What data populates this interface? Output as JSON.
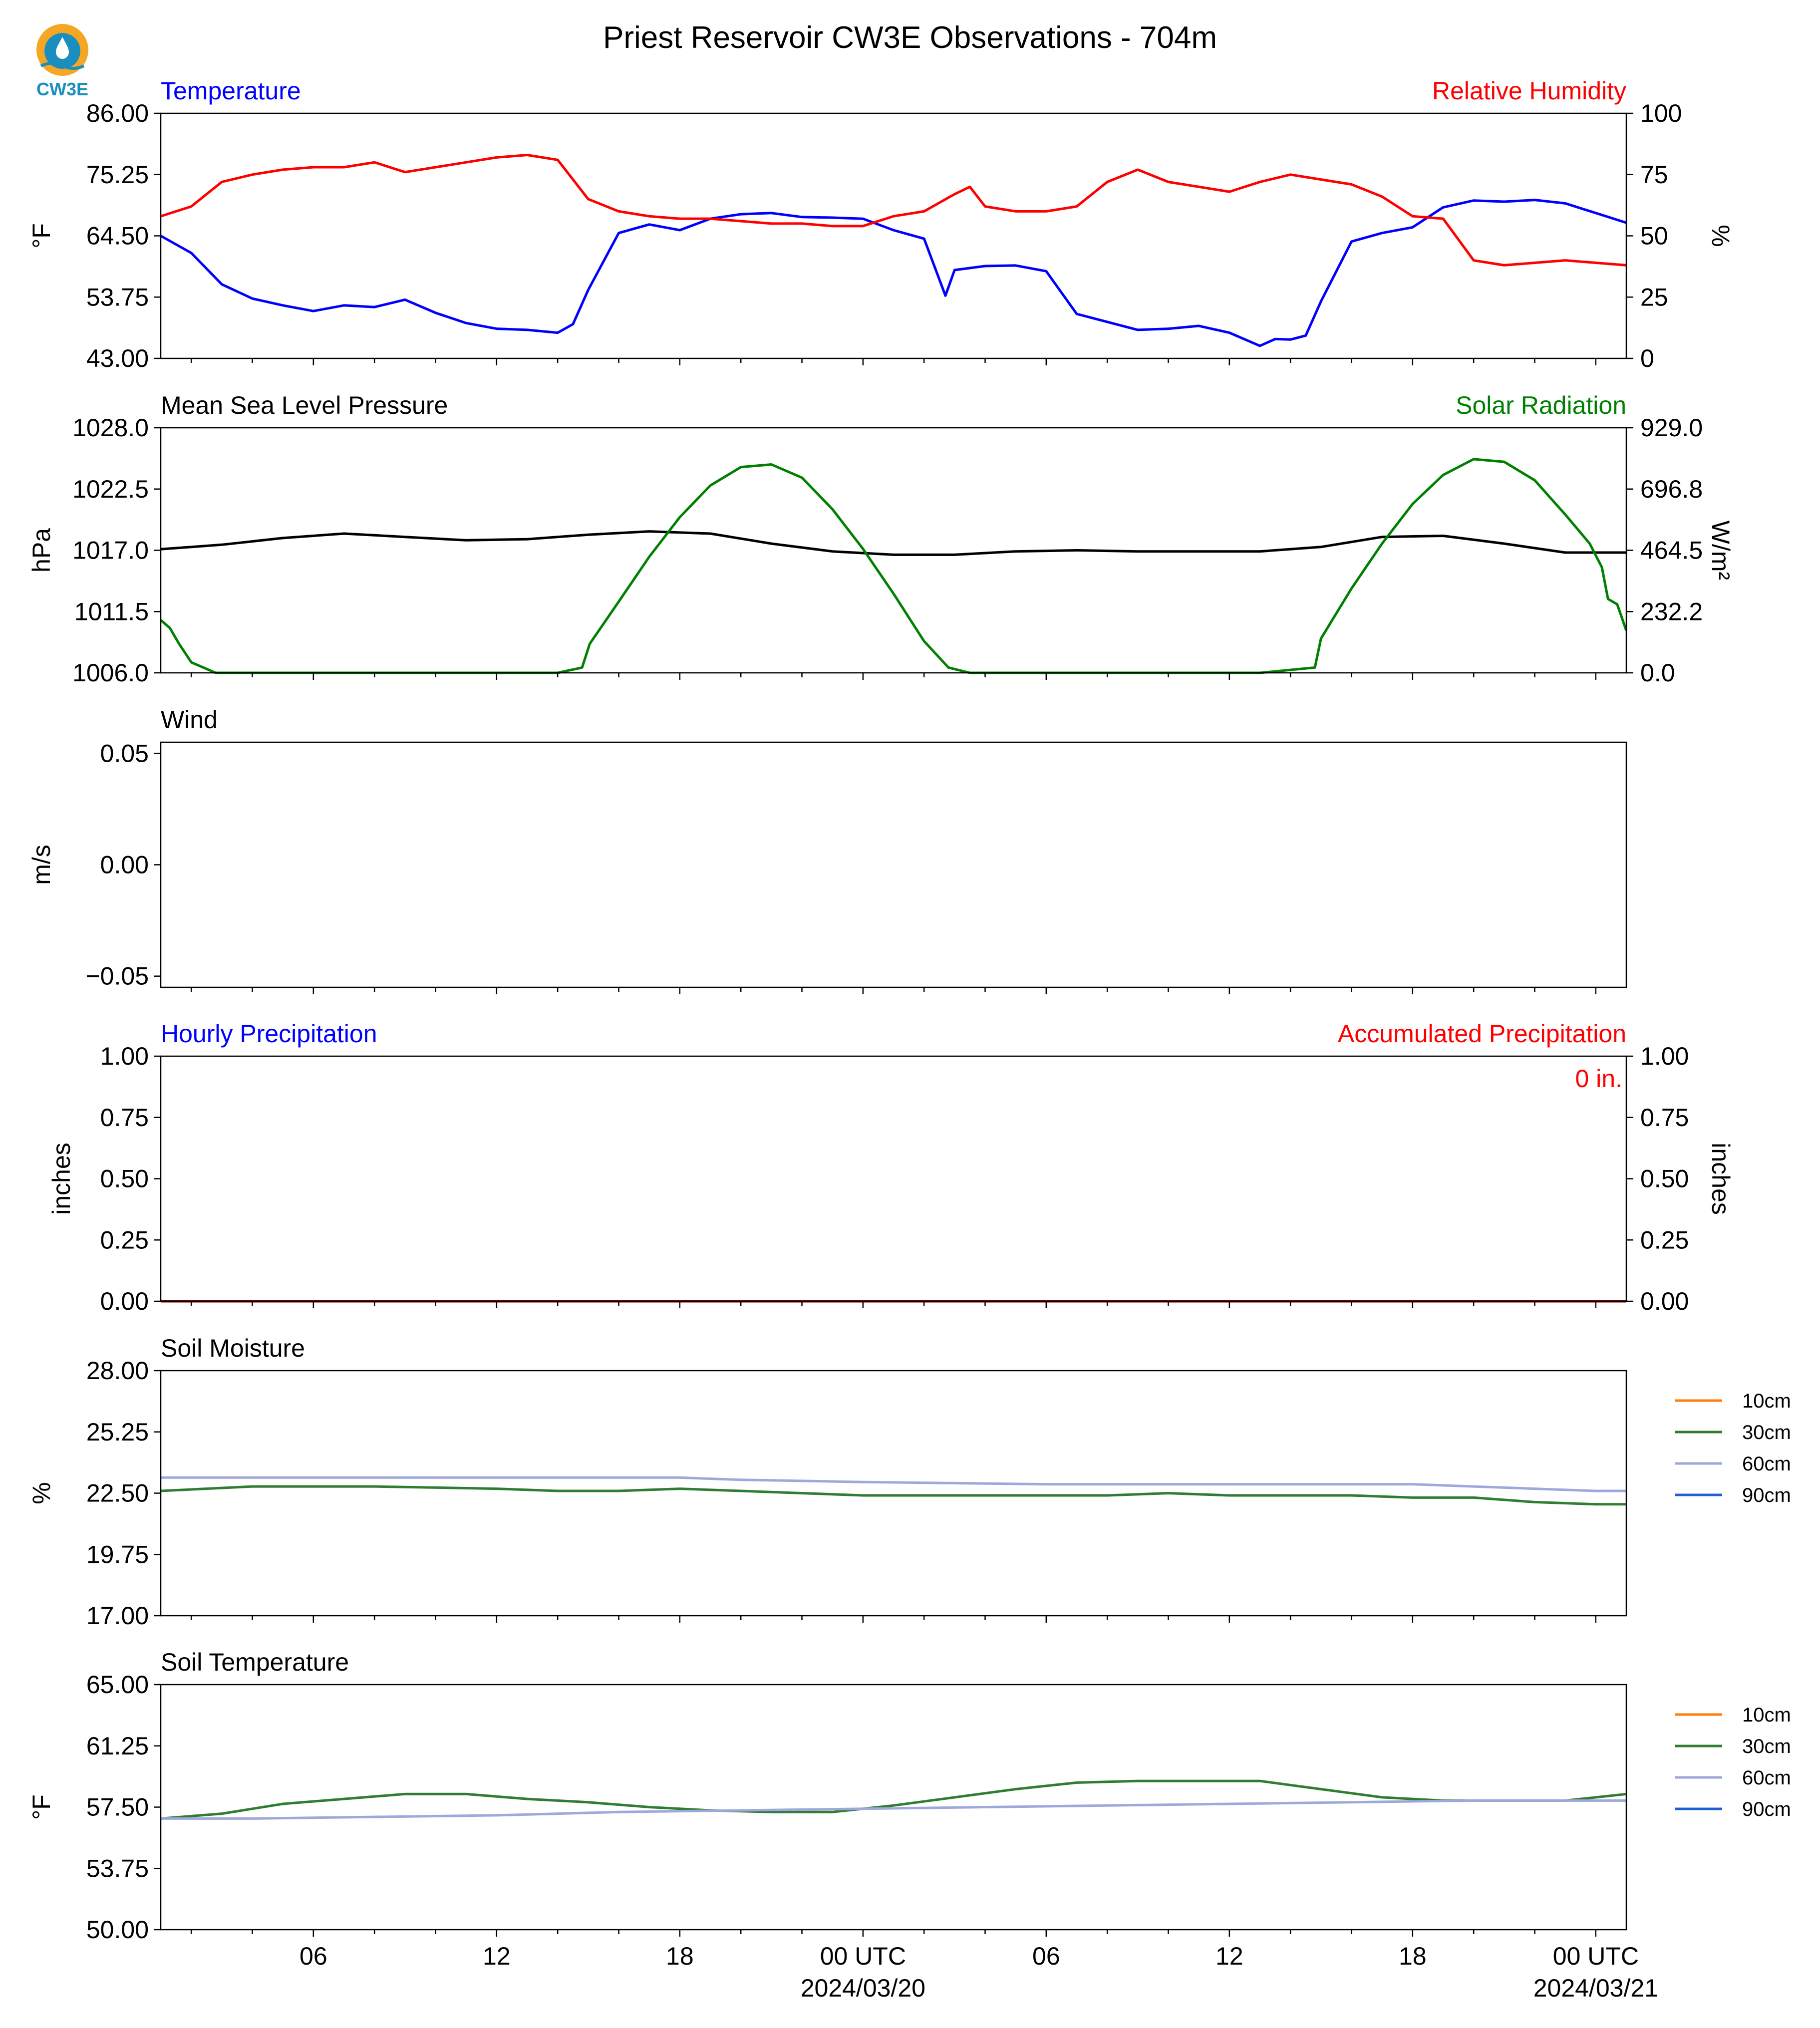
{
  "title": "Priest Reservoir CW3E Observations - 704m",
  "logo": {
    "text": "CW3E",
    "colors": {
      "sun": "#f5a623",
      "drop": "#1a8fbf"
    }
  },
  "colors": {
    "temperature": "#0000ff",
    "humidity": "#ff0000",
    "pressure": "#000000",
    "solar": "#008000",
    "soil_10cm": "#ff7f0e",
    "soil_30cm": "#2e7d32",
    "soil_60cm": "#9fa8da",
    "soil_90cm": "#1f5fd6",
    "hourly_precip": "#0000ff",
    "accum_precip": "#8b0000"
  },
  "x_axis": {
    "ticks": [
      {
        "hour": 6,
        "label": "06"
      },
      {
        "hour": 12,
        "label": "12"
      },
      {
        "hour": 18,
        "label": "18"
      },
      {
        "hour": 24,
        "label": "00 UTC",
        "sublabel": "2024/03/20"
      },
      {
        "hour": 30,
        "label": "06"
      },
      {
        "hour": 36,
        "label": "12"
      },
      {
        "hour": 42,
        "label": "18"
      },
      {
        "hour": 48,
        "label": "00 UTC",
        "sublabel": "2024/03/21"
      }
    ],
    "range_hours": [
      1,
      49
    ]
  },
  "chart_data": [
    {
      "type": "line",
      "left_title": "Temperature",
      "right_title": "Relative Humidity",
      "ylabel": "°F",
      "ylabel_right": "%",
      "yticks": [
        "86.00",
        "75.25",
        "64.50",
        "53.75",
        "43.00"
      ],
      "ylim": [
        43,
        86
      ],
      "yticks_right": [
        "100",
        "75",
        "50",
        "25",
        "0"
      ],
      "ylim_right": [
        0,
        100
      ],
      "series": [
        {
          "name": "Temperature",
          "axis": "left",
          "color": "#0000ff",
          "x": [
            1,
            2,
            3,
            4,
            5,
            6,
            7,
            8,
            9,
            10,
            11,
            12,
            13,
            14,
            14.5,
            15,
            16,
            17,
            18,
            19,
            20,
            21,
            22,
            23,
            24,
            25,
            26,
            26.7,
            27,
            28,
            29,
            30,
            31,
            32,
            33,
            34,
            35,
            36,
            37,
            37.5,
            38,
            38.5,
            39,
            40,
            41,
            42,
            43,
            44,
            45,
            46,
            47,
            48,
            49
          ],
          "values": [
            64.5,
            61.5,
            56,
            53.5,
            52.3,
            51.3,
            52.3,
            52,
            53.3,
            51,
            49.2,
            48.2,
            48,
            47.5,
            49,
            55,
            65,
            66.5,
            65.5,
            67.5,
            68.3,
            68.5,
            67.8,
            67.7,
            67.5,
            65.5,
            64,
            54,
            58.5,
            59.2,
            59.3,
            58.3,
            50.8,
            49.4,
            48,
            48.2,
            48.7,
            47.5,
            45.2,
            46.4,
            46.3,
            47,
            53,
            63.5,
            65,
            66,
            69.5,
            70.7,
            70.5,
            70.8,
            70.2,
            68.5,
            66.8
          ]
        },
        {
          "name": "Relative Humidity",
          "axis": "right",
          "color": "#ff0000",
          "x": [
            1,
            2,
            3,
            4,
            5,
            6,
            7,
            8,
            9,
            10,
            11,
            12,
            13,
            14,
            15,
            16,
            17,
            18,
            19,
            20,
            21,
            22,
            23,
            24,
            25,
            26,
            27,
            27.5,
            28,
            29,
            30,
            31,
            32,
            33,
            34,
            35,
            36,
            37,
            38,
            39,
            40,
            41,
            42,
            43,
            44,
            45,
            46,
            47,
            48,
            49
          ],
          "values": [
            58,
            62,
            72,
            75,
            77,
            78,
            78,
            80,
            76,
            78,
            80,
            82,
            83,
            81,
            65,
            60,
            58,
            57,
            57,
            56,
            55,
            55,
            54,
            54,
            58,
            60,
            67,
            70,
            62,
            60,
            60,
            62,
            72,
            77,
            72,
            70,
            68,
            72,
            75,
            73,
            71,
            66,
            58,
            57,
            40,
            38,
            39,
            40,
            39,
            38
          ]
        }
      ]
    },
    {
      "type": "line",
      "left_title": "Mean Sea Level Pressure",
      "right_title": "Solar Radiation",
      "ylabel": "hPa",
      "ylabel_right": "W/m²",
      "yticks": [
        "1028.0",
        "1022.5",
        "1017.0",
        "1011.5",
        "1006.0"
      ],
      "ylim": [
        1006,
        1028
      ],
      "yticks_right": [
        "929.0",
        "696.8",
        "464.5",
        "232.2",
        "0.0"
      ],
      "ylim_right": [
        0,
        929
      ],
      "series": [
        {
          "name": "Mean Sea Level Pressure",
          "axis": "left",
          "color": "#000000",
          "x": [
            1,
            3,
            5,
            7,
            9,
            11,
            13,
            15,
            17,
            19,
            21,
            23,
            25,
            27,
            29,
            31,
            33,
            35,
            37,
            39,
            41,
            43,
            45,
            47,
            49
          ],
          "values": [
            1017.1,
            1017.5,
            1018.1,
            1018.5,
            1018.2,
            1017.9,
            1018.0,
            1018.4,
            1018.7,
            1018.5,
            1017.6,
            1016.9,
            1016.6,
            1016.6,
            1016.9,
            1017.0,
            1016.9,
            1016.9,
            1016.9,
            1017.3,
            1018.2,
            1018.3,
            1017.6,
            1016.8,
            1016.8
          ]
        },
        {
          "name": "Solar Radiation",
          "axis": "right",
          "color": "#008000",
          "x": [
            1,
            1.3,
            1.6,
            2,
            2.8,
            4,
            8,
            12,
            14,
            14.8,
            15.05,
            16,
            17,
            18,
            19,
            20,
            21,
            22,
            23,
            24,
            25,
            26,
            26.8,
            27.5,
            30,
            34,
            37,
            38.8,
            39,
            40,
            41,
            42,
            43,
            44,
            45,
            46,
            47,
            47.8,
            48.2,
            48.4,
            48.7,
            49
          ],
          "values": [
            200,
            170,
            110,
            40,
            0,
            0,
            0,
            0,
            0,
            20,
            110,
            270,
            440,
            590,
            710,
            780,
            790,
            740,
            620,
            470,
            300,
            120,
            20,
            0,
            0,
            0,
            0,
            20,
            130,
            320,
            490,
            640,
            750,
            810,
            800,
            730,
            600,
            490,
            400,
            280,
            260,
            160
          ]
        }
      ]
    },
    {
      "type": "line",
      "left_title": "Wind",
      "ylabel": "m/s",
      "yticks": [
        "0.05",
        "0.00",
        "−0.05"
      ],
      "ylim": [
        -0.055,
        0.055
      ],
      "series": []
    },
    {
      "type": "bar",
      "left_title": "Hourly Precipitation",
      "right_title": "Accumulated Precipitation",
      "ylabel": "inches",
      "ylabel_right": "inches",
      "yticks": [
        "1.00",
        "0.75",
        "0.50",
        "0.25",
        "0.00"
      ],
      "ylim": [
        0,
        1
      ],
      "yticks_right": [
        "1.00",
        "0.75",
        "0.50",
        "0.25",
        "0.00"
      ],
      "ylim_right": [
        0,
        1
      ],
      "annotation": "0 in.",
      "series": [
        {
          "name": "Accumulated Precipitation",
          "axis": "right",
          "color": "#8b0000",
          "x": [
            1,
            49
          ],
          "values": [
            0,
            0
          ]
        }
      ]
    },
    {
      "type": "line",
      "left_title": "Soil Moisture",
      "ylabel": "%",
      "yticks": [
        "28.00",
        "25.25",
        "22.50",
        "19.75",
        "17.00"
      ],
      "ylim": [
        17,
        28
      ],
      "legend": [
        "10cm",
        "30cm",
        "60cm",
        "90cm"
      ],
      "legend_position": "outside-right",
      "series": [
        {
          "name": "30cm",
          "axis": "left",
          "color": "#2e7d32",
          "x": [
            1,
            4,
            8,
            12,
            14,
            16,
            18,
            20,
            22,
            24,
            26,
            28,
            30,
            32,
            34,
            36,
            38,
            40,
            42,
            44,
            46,
            48,
            49
          ],
          "values": [
            22.6,
            22.8,
            22.8,
            22.7,
            22.6,
            22.6,
            22.7,
            22.6,
            22.5,
            22.4,
            22.4,
            22.4,
            22.4,
            22.4,
            22.5,
            22.4,
            22.4,
            22.4,
            22.3,
            22.3,
            22.1,
            22.0,
            22.0
          ]
        },
        {
          "name": "60cm",
          "axis": "left",
          "color": "#9fa8da",
          "x": [
            1,
            6,
            12,
            18,
            20,
            24,
            30,
            36,
            42,
            46,
            48,
            49
          ],
          "values": [
            23.2,
            23.2,
            23.2,
            23.2,
            23.1,
            23.0,
            22.9,
            22.9,
            22.9,
            22.7,
            22.6,
            22.6
          ]
        }
      ]
    },
    {
      "type": "line",
      "left_title": "Soil Temperature",
      "ylabel": "°F",
      "yticks": [
        "65.00",
        "61.25",
        "57.50",
        "53.75",
        "50.00"
      ],
      "ylim": [
        50,
        65
      ],
      "legend": [
        "10cm",
        "30cm",
        "60cm",
        "90cm"
      ],
      "legend_position": "outside-right",
      "series": [
        {
          "name": "30cm",
          "axis": "left",
          "color": "#2e7d32",
          "x": [
            1,
            3,
            5,
            7,
            9,
            11,
            13,
            15,
            17,
            19,
            21,
            23,
            25,
            27,
            29,
            31,
            33,
            35,
            37,
            39,
            41,
            43,
            45,
            47,
            48,
            49
          ],
          "values": [
            56.8,
            57.1,
            57.7,
            58.0,
            58.3,
            58.3,
            58.0,
            57.8,
            57.5,
            57.3,
            57.2,
            57.2,
            57.6,
            58.1,
            58.6,
            59.0,
            59.1,
            59.1,
            59.1,
            58.6,
            58.1,
            57.9,
            57.9,
            57.9,
            58.1,
            58.3
          ]
        },
        {
          "name": "60cm",
          "axis": "left",
          "color": "#9fa8da",
          "x": [
            1,
            4,
            8,
            12,
            16,
            20,
            24,
            28,
            32,
            36,
            40,
            44,
            48,
            49
          ],
          "values": [
            56.8,
            56.8,
            56.9,
            57.0,
            57.2,
            57.3,
            57.4,
            57.5,
            57.6,
            57.7,
            57.8,
            57.9,
            57.9,
            57.9
          ]
        }
      ]
    }
  ]
}
